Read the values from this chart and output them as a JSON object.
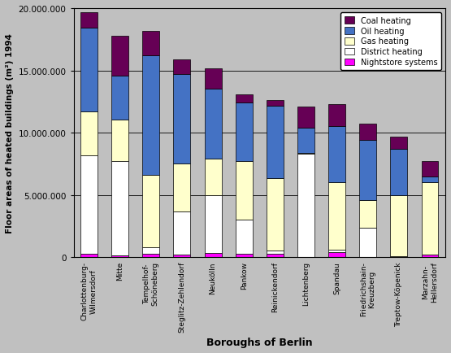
{
  "boroughs": [
    "Charlottenburg-\nWilmersdorf",
    "Mitte",
    "Tempelhof-\nSchöneberg",
    "Steglitz-Zehlendorf",
    "Neukölln",
    "Pankow",
    "Reinickendorf",
    "Lichtenberg",
    "Spandau",
    "Friedrichshain-\nKreuzberg",
    "Treptow-Köpenick",
    "Marzahn-\nHellersdorf"
  ],
  "heating_types": [
    "Nightstore systems",
    "District heating",
    "Gas heating",
    "Oil heating",
    "Coal heating"
  ],
  "colors": [
    "#ff00ff",
    "#ffffff",
    "#ffffcc",
    "#4472c4",
    "#660055"
  ],
  "data": {
    "Nightstore systems": [
      300000,
      150000,
      300000,
      200000,
      350000,
      300000,
      300000,
      0,
      400000,
      0,
      0,
      200000
    ],
    "District heating": [
      7900000,
      7600000,
      500000,
      3500000,
      4600000,
      2700000,
      250000,
      8300000,
      200000,
      2400000,
      100000,
      0
    ],
    "Gas heating": [
      3500000,
      3300000,
      5800000,
      3800000,
      3000000,
      4700000,
      5800000,
      100000,
      5400000,
      2200000,
      4900000,
      5800000
    ],
    "Oil heating": [
      6700000,
      3500000,
      9600000,
      7200000,
      5600000,
      4700000,
      5800000,
      2000000,
      4500000,
      4800000,
      3700000,
      500000
    ],
    "Coal heating": [
      1300000,
      3200000,
      2000000,
      1200000,
      1600000,
      700000,
      500000,
      1700000,
      1800000,
      1300000,
      1000000,
      1200000
    ]
  },
  "ylabel": "Floor areas of heated buildings (m²) 1994",
  "xlabel": "Boroughs of Berlin",
  "ylim": [
    0,
    20000000
  ],
  "yticks": [
    0,
    5000000,
    10000000,
    15000000,
    20000000
  ],
  "ytick_labels": [
    "0",
    "5.000.000",
    "10.000.000",
    "15.000.000",
    "20.000.000"
  ],
  "background_color": "#c0c0c0",
  "plot_background": "#c0c0c0",
  "legend_order": [
    "Coal heating",
    "Oil heating",
    "Gas heating",
    "District heating",
    "Nightstore systems"
  ]
}
